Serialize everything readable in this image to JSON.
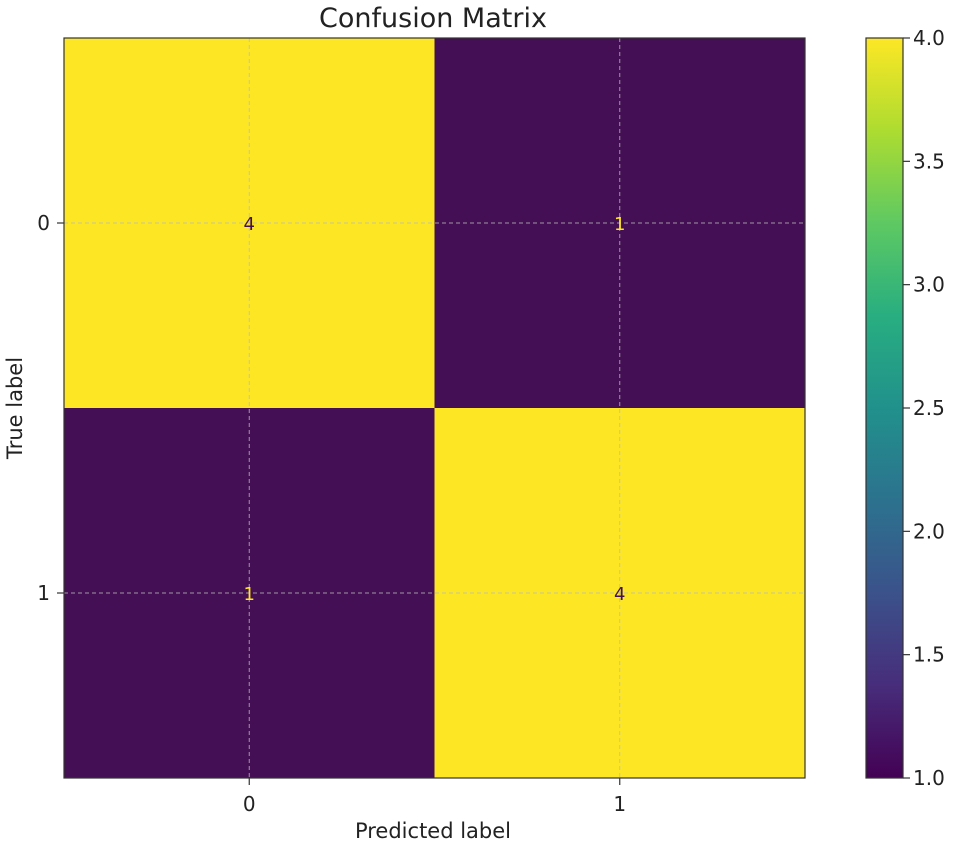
{
  "chart_data": {
    "type": "heatmap",
    "title": "Confusion Matrix",
    "xlabel": "Predicted label",
    "ylabel": "True label",
    "x_categories": [
      "0",
      "1"
    ],
    "y_categories": [
      "0",
      "1"
    ],
    "values": [
      [
        4,
        1
      ],
      [
        1,
        4
      ]
    ],
    "colorbar": {
      "min": 1.0,
      "max": 4.0,
      "ticks": [
        "1.0",
        "1.5",
        "2.0",
        "2.5",
        "3.0",
        "3.5",
        "4.0"
      ],
      "colormap": "viridis"
    },
    "colors": {
      "low": "#440f54",
      "high": "#fde725"
    },
    "grid": true
  }
}
